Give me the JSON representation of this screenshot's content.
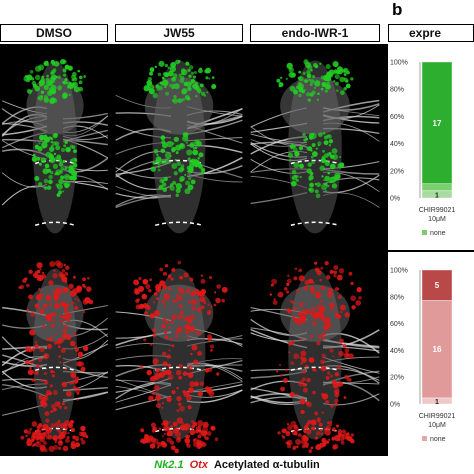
{
  "panel_b_letter": "b",
  "columns": [
    {
      "label": "DMSO"
    },
    {
      "label": "JW55"
    },
    {
      "label": "endo-IWR-1"
    },
    {
      "label": "expre"
    }
  ],
  "stain_legend": {
    "nk21": "Nk2.1",
    "otx": "Otx",
    "tubulin": "Acetylated α-tubulin"
  },
  "colors": {
    "nk21_green": "#22cc22",
    "otx_red": "#e01818",
    "tubulin_white": "#d8d8d8"
  },
  "chart_data": [
    {
      "type": "bar",
      "categories": [
        "CHIR99021 10μM"
      ],
      "category_line1": "CHIR99021",
      "category_line2": "10μM",
      "yticks": [
        "0%",
        "20%",
        "40%",
        "60%",
        "80%",
        "100%"
      ],
      "ylim": [
        0,
        100
      ],
      "series": [
        {
          "values": [
            1
          ],
          "color": "#a6dca0"
        },
        {
          "values": [
            1
          ],
          "color": "#7cd070"
        },
        {
          "values": [
            17
          ],
          "color": "#2eae2e"
        }
      ],
      "segment_labels": [
        "1",
        "",
        "17"
      ],
      "legend": [
        "none"
      ],
      "legend_color": "#7ccc6e"
    },
    {
      "type": "bar",
      "categories": [
        "CHIR99021 10μM"
      ],
      "category_line1": "CHIR99021",
      "category_line2": "10μM",
      "yticks": [
        "0%",
        "20%",
        "40%",
        "60%",
        "80%",
        "100%"
      ],
      "ylim": [
        0,
        100
      ],
      "series": [
        {
          "values": [
            1
          ],
          "color": "#f0c8c8"
        },
        {
          "values": [
            16
          ],
          "color": "#e09a9a"
        },
        {
          "values": [
            5
          ],
          "color": "#b94848"
        }
      ],
      "segment_labels": [
        "1",
        "16",
        "5"
      ],
      "legend": [
        "none"
      ],
      "legend_color": "#e2a8a8"
    }
  ]
}
